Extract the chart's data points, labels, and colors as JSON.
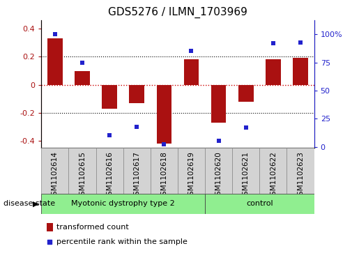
{
  "title": "GDS5276 / ILMN_1703969",
  "samples": [
    "GSM1102614",
    "GSM1102615",
    "GSM1102616",
    "GSM1102617",
    "GSM1102618",
    "GSM1102619",
    "GSM1102620",
    "GSM1102621",
    "GSM1102622",
    "GSM1102623"
  ],
  "bar_values": [
    0.33,
    0.1,
    -0.17,
    -0.13,
    -0.42,
    0.18,
    -0.27,
    -0.12,
    0.18,
    0.19
  ],
  "percentile_values": [
    100,
    75,
    10,
    18,
    2,
    85,
    5,
    17,
    92,
    93
  ],
  "bar_color": "#aa1111",
  "percentile_color": "#2222cc",
  "ylim_left": [
    -0.45,
    0.46
  ],
  "ylim_right": [
    -1.125,
    112.5
  ],
  "yticks_left": [
    -0.4,
    -0.2,
    0.0,
    0.2,
    0.4
  ],
  "yticks_right": [
    0,
    25,
    50,
    75,
    100
  ],
  "ytick_labels_left": [
    "-0.4",
    "-0.2",
    "0",
    "0.2",
    "0.4"
  ],
  "ytick_labels_right": [
    "0",
    "25",
    "50",
    "75",
    "100%"
  ],
  "hlines": [
    -0.2,
    0.0,
    0.2
  ],
  "hline_styles": [
    "dotted",
    "dotted",
    "dotted"
  ],
  "hline_colors": [
    "black",
    "black",
    "black"
  ],
  "hline_zero_style": "dotted",
  "hline_zero_color": "#cc0000",
  "groups": [
    {
      "label": "Myotonic dystrophy type 2",
      "indices": [
        0,
        1,
        2,
        3,
        4,
        5
      ],
      "color": "#90ee90"
    },
    {
      "label": "control",
      "indices": [
        6,
        7,
        8,
        9
      ],
      "color": "#90ee90"
    }
  ],
  "disease_state_label": "disease state",
  "legend_bar_label": "transformed count",
  "legend_dot_label": "percentile rank within the sample",
  "bar_width": 0.55,
  "sample_box_color": "#d3d3d3",
  "title_fontsize": 11,
  "tick_fontsize": 8,
  "label_fontsize": 7.5
}
